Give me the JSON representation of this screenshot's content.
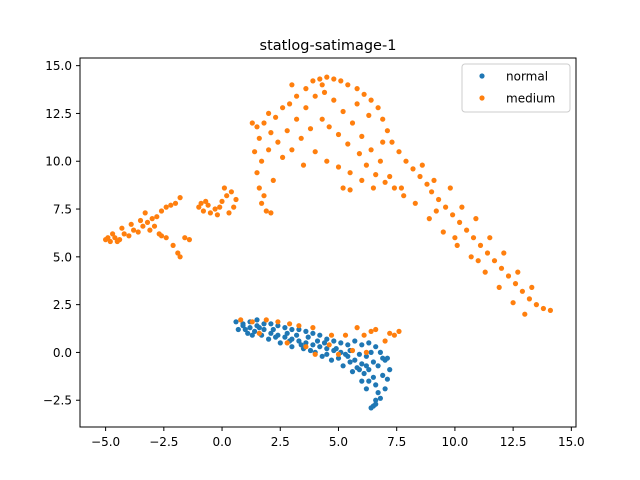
{
  "chart_data": {
    "type": "scatter",
    "title": "statlog-satimage-1",
    "xlabel": "",
    "ylabel": "",
    "xlim": [
      -6.1,
      15.2
    ],
    "ylim": [
      -3.9,
      15.4
    ],
    "xticks": [
      -5.0,
      -2.5,
      0.0,
      2.5,
      5.0,
      7.5,
      10.0,
      12.5,
      15.0
    ],
    "yticks": [
      -2.5,
      0.0,
      2.5,
      5.0,
      7.5,
      10.0,
      12.5,
      15.0
    ],
    "legend_position": "top-right",
    "grid": false,
    "series": [
      {
        "name": "normal",
        "color": "#1f77b4",
        "points": [
          [
            0.6,
            1.6
          ],
          [
            0.9,
            1.5
          ],
          [
            1.2,
            1.6
          ],
          [
            1.5,
            1.4
          ],
          [
            1.0,
            1.2
          ],
          [
            1.4,
            1.1
          ],
          [
            1.8,
            1.2
          ],
          [
            2.1,
            1.0
          ],
          [
            2.4,
            0.9
          ],
          [
            2.7,
            0.8
          ],
          [
            3.0,
            0.7
          ],
          [
            3.3,
            0.6
          ],
          [
            3.6,
            0.5
          ],
          [
            3.9,
            0.4
          ],
          [
            4.2,
            0.3
          ],
          [
            4.5,
            0.2
          ],
          [
            4.8,
            0.1
          ],
          [
            5.1,
            0.0
          ],
          [
            5.4,
            -0.2
          ],
          [
            5.7,
            -0.4
          ],
          [
            6.0,
            -0.6
          ],
          [
            6.3,
            -0.9
          ],
          [
            6.5,
            -1.3
          ],
          [
            6.6,
            -1.7
          ],
          [
            6.7,
            -2.1
          ],
          [
            6.6,
            -2.5
          ],
          [
            6.5,
            -2.8
          ],
          [
            6.4,
            -2.9
          ],
          [
            6.8,
            -2.4
          ],
          [
            7.0,
            -1.9
          ],
          [
            7.1,
            -1.4
          ],
          [
            7.2,
            -0.9
          ],
          [
            7.0,
            -0.4
          ],
          [
            6.8,
            0.0
          ],
          [
            6.6,
            0.3
          ],
          [
            6.3,
            0.5
          ],
          [
            6.0,
            0.4
          ],
          [
            5.7,
            0.6
          ],
          [
            5.4,
            0.4
          ],
          [
            5.1,
            0.5
          ],
          [
            4.8,
            0.6
          ],
          [
            4.5,
            0.7
          ],
          [
            4.2,
            0.9
          ],
          [
            3.9,
            1.0
          ],
          [
            3.6,
            1.1
          ],
          [
            3.3,
            1.2
          ],
          [
            3.0,
            1.2
          ],
          [
            2.7,
            1.3
          ],
          [
            2.4,
            1.4
          ],
          [
            2.1,
            1.5
          ],
          [
            1.8,
            1.5
          ],
          [
            1.5,
            1.7
          ],
          [
            1.2,
            1.3
          ],
          [
            0.9,
            1.4
          ],
          [
            0.7,
            1.2
          ],
          [
            2.0,
            0.7
          ],
          [
            2.5,
            0.5
          ],
          [
            3.0,
            0.3
          ],
          [
            3.5,
            0.2
          ],
          [
            4.0,
            0.0
          ],
          [
            4.5,
            -0.1
          ],
          [
            5.0,
            -0.3
          ],
          [
            5.5,
            -0.5
          ],
          [
            5.8,
            -0.8
          ],
          [
            6.1,
            -1.1
          ],
          [
            6.3,
            -1.5
          ],
          [
            6.2,
            -1.9
          ],
          [
            6.0,
            -1.5
          ],
          [
            5.6,
            -1.0
          ],
          [
            5.2,
            -0.7
          ],
          [
            4.7,
            -0.4
          ],
          [
            4.3,
            -0.2
          ],
          [
            3.8,
            0.1
          ],
          [
            3.4,
            0.4
          ],
          [
            2.9,
            0.6
          ],
          [
            2.3,
            0.8
          ],
          [
            1.7,
            0.9
          ],
          [
            1.3,
            0.9
          ],
          [
            6.9,
            -1.2
          ],
          [
            7.1,
            -0.3
          ],
          [
            6.4,
            0.0
          ],
          [
            6.2,
            -0.2
          ],
          [
            5.9,
            -0.1
          ],
          [
            5.5,
            0.1
          ],
          [
            5.3,
            -0.1
          ],
          [
            4.9,
            0.2
          ],
          [
            4.4,
            0.5
          ],
          [
            4.1,
            0.6
          ],
          [
            3.7,
            0.8
          ],
          [
            3.2,
            0.9
          ],
          [
            2.8,
            1.0
          ],
          [
            2.2,
            1.2
          ],
          [
            1.6,
            1.3
          ],
          [
            1.1,
            1.0
          ],
          [
            6.7,
            -0.7
          ],
          [
            6.9,
            -0.3
          ],
          [
            6.5,
            -0.5
          ],
          [
            6.2,
            -0.7
          ],
          [
            5.9,
            -0.9
          ],
          [
            6.6,
            -2.7
          ]
        ]
      },
      {
        "name": "medium",
        "color": "#ff7f0e",
        "points": [
          [
            -5.0,
            5.9
          ],
          [
            -4.8,
            5.8
          ],
          [
            -4.6,
            6.0
          ],
          [
            -4.4,
            5.9
          ],
          [
            -4.2,
            6.2
          ],
          [
            -4.0,
            6.1
          ],
          [
            -3.8,
            6.4
          ],
          [
            -3.6,
            6.3
          ],
          [
            -3.4,
            6.6
          ],
          [
            -3.2,
            6.8
          ],
          [
            -3.0,
            7.0
          ],
          [
            -2.8,
            7.1
          ],
          [
            -2.6,
            7.4
          ],
          [
            -2.4,
            7.6
          ],
          [
            -2.2,
            7.7
          ],
          [
            -2.0,
            7.8
          ],
          [
            -1.8,
            8.1
          ],
          [
            -4.7,
            6.2
          ],
          [
            -4.3,
            6.5
          ],
          [
            -3.9,
            6.7
          ],
          [
            -3.5,
            6.9
          ],
          [
            -3.1,
            6.4
          ],
          [
            -2.7,
            6.2
          ],
          [
            -2.4,
            6.0
          ],
          [
            -2.1,
            5.6
          ],
          [
            -1.9,
            5.2
          ],
          [
            -1.8,
            5.0
          ],
          [
            -2.6,
            6.1
          ],
          [
            -1.4,
            5.9
          ],
          [
            -1.6,
            6.0
          ],
          [
            -3.3,
            7.3
          ],
          [
            -2.9,
            6.6
          ],
          [
            -4.9,
            6.0
          ],
          [
            -4.5,
            5.8
          ],
          [
            -1.0,
            7.6
          ],
          [
            -0.8,
            7.4
          ],
          [
            -0.6,
            7.7
          ],
          [
            -0.3,
            7.5
          ],
          [
            0.0,
            7.9
          ],
          [
            0.2,
            8.2
          ],
          [
            0.4,
            8.4
          ],
          [
            0.5,
            7.6
          ],
          [
            0.3,
            7.3
          ],
          [
            -0.2,
            7.2
          ],
          [
            -0.5,
            7.3
          ],
          [
            -0.9,
            7.8
          ],
          [
            0.1,
            8.6
          ],
          [
            0.6,
            8.0
          ],
          [
            -0.1,
            7.6
          ],
          [
            -0.7,
            7.9
          ],
          [
            1.4,
            10.5
          ],
          [
            1.6,
            11.2
          ],
          [
            1.5,
            11.8
          ],
          [
            1.8,
            12.0
          ],
          [
            2.1,
            11.5
          ],
          [
            2.3,
            12.3
          ],
          [
            2.6,
            12.8
          ],
          [
            2.9,
            13.0
          ],
          [
            3.2,
            13.4
          ],
          [
            3.6,
            13.8
          ],
          [
            3.9,
            14.2
          ],
          [
            4.2,
            14.3
          ],
          [
            4.5,
            14.4
          ],
          [
            4.8,
            14.3
          ],
          [
            5.1,
            14.2
          ],
          [
            5.4,
            14.0
          ],
          [
            5.8,
            13.8
          ],
          [
            6.1,
            13.5
          ],
          [
            6.4,
            13.2
          ],
          [
            6.7,
            12.8
          ],
          [
            6.9,
            12.2
          ],
          [
            7.1,
            11.6
          ],
          [
            7.3,
            11.0
          ],
          [
            7.6,
            10.5
          ],
          [
            7.9,
            10.0
          ],
          [
            8.2,
            9.6
          ],
          [
            8.5,
            9.2
          ],
          [
            8.8,
            8.8
          ],
          [
            9.0,
            8.4
          ],
          [
            9.3,
            8.0
          ],
          [
            9.6,
            7.6
          ],
          [
            9.9,
            7.2
          ],
          [
            10.2,
            6.8
          ],
          [
            10.5,
            6.4
          ],
          [
            10.8,
            6.0
          ],
          [
            11.1,
            5.6
          ],
          [
            11.4,
            5.2
          ],
          [
            11.7,
            4.8
          ],
          [
            12.0,
            4.4
          ],
          [
            12.3,
            4.0
          ],
          [
            12.6,
            3.6
          ],
          [
            12.9,
            3.2
          ],
          [
            13.2,
            2.8
          ],
          [
            13.5,
            2.5
          ],
          [
            13.8,
            2.3
          ],
          [
            14.1,
            2.2
          ],
          [
            13.0,
            2.0
          ],
          [
            12.5,
            2.6
          ],
          [
            11.9,
            3.4
          ],
          [
            11.3,
            4.2
          ],
          [
            10.7,
            5.0
          ],
          [
            10.1,
            5.6
          ],
          [
            9.5,
            6.3
          ],
          [
            8.9,
            7.0
          ],
          [
            8.3,
            7.8
          ],
          [
            7.7,
            8.6
          ],
          [
            7.2,
            9.2
          ],
          [
            6.8,
            10.0
          ],
          [
            6.4,
            10.6
          ],
          [
            6.0,
            11.3
          ],
          [
            5.6,
            12.0
          ],
          [
            5.2,
            12.6
          ],
          [
            4.8,
            13.2
          ],
          [
            4.4,
            13.6
          ],
          [
            4.0,
            13.4
          ],
          [
            3.6,
            12.8
          ],
          [
            3.2,
            12.2
          ],
          [
            2.8,
            11.6
          ],
          [
            2.4,
            11.0
          ],
          [
            2.0,
            10.6
          ],
          [
            1.7,
            10.0
          ],
          [
            1.5,
            9.4
          ],
          [
            1.6,
            8.6
          ],
          [
            1.8,
            8.2
          ],
          [
            1.7,
            7.8
          ],
          [
            1.9,
            7.4
          ],
          [
            2.1,
            7.3
          ],
          [
            2.6,
            10.2
          ],
          [
            3.0,
            10.6
          ],
          [
            3.4,
            11.2
          ],
          [
            3.8,
            11.7
          ],
          [
            4.3,
            12.2
          ],
          [
            4.6,
            11.8
          ],
          [
            5.0,
            11.4
          ],
          [
            5.4,
            10.9
          ],
          [
            5.9,
            10.4
          ],
          [
            6.2,
            9.8
          ],
          [
            6.6,
            9.3
          ],
          [
            7.0,
            8.9
          ],
          [
            7.4,
            8.6
          ],
          [
            7.8,
            8.2
          ],
          [
            8.6,
            9.8
          ],
          [
            9.1,
            9.0
          ],
          [
            9.8,
            8.6
          ],
          [
            10.3,
            7.6
          ],
          [
            10.9,
            7.0
          ],
          [
            11.5,
            6.0
          ],
          [
            12.1,
            5.2
          ],
          [
            12.7,
            4.2
          ],
          [
            13.3,
            3.4
          ],
          [
            4.0,
            10.5
          ],
          [
            4.5,
            10.0
          ],
          [
            5.0,
            9.7
          ],
          [
            5.5,
            9.4
          ],
          [
            6.0,
            9.0
          ],
          [
            6.5,
            8.6
          ],
          [
            3.5,
            9.8
          ],
          [
            2.2,
            9.0
          ],
          [
            5.2,
            8.6
          ],
          [
            5.5,
            8.5
          ],
          [
            5.8,
            13.0
          ],
          [
            6.3,
            12.4
          ],
          [
            4.3,
            14.0
          ],
          [
            3.0,
            14.0
          ],
          [
            6.9,
            11.0
          ],
          [
            1.3,
            12.0
          ],
          [
            2.0,
            12.5
          ],
          [
            11.0,
            4.8
          ],
          [
            10.0,
            6.0
          ],
          [
            9.2,
            7.4
          ],
          [
            0.8,
            1.7
          ],
          [
            1.3,
            1.6
          ],
          [
            1.9,
            1.7
          ],
          [
            2.4,
            1.6
          ],
          [
            2.9,
            1.5
          ],
          [
            3.3,
            1.4
          ],
          [
            3.6,
            0.3
          ],
          [
            4.0,
            -0.1
          ],
          [
            4.6,
            0.4
          ],
          [
            5.3,
            0.9
          ],
          [
            5.8,
            1.3
          ],
          [
            6.1,
            0.9
          ],
          [
            6.6,
            1.2
          ],
          [
            7.0,
            0.6
          ],
          [
            7.4,
            0.9
          ],
          [
            7.6,
            1.1
          ],
          [
            7.2,
            1.0
          ],
          [
            6.2,
            0.0
          ],
          [
            5.6,
            0.1
          ],
          [
            5.0,
            -0.1
          ],
          [
            2.8,
            0.5
          ],
          [
            3.9,
            1.3
          ],
          [
            4.7,
            0.9
          ],
          [
            1.6,
            1.0
          ],
          [
            6.4,
            1.1
          ]
        ]
      }
    ]
  }
}
